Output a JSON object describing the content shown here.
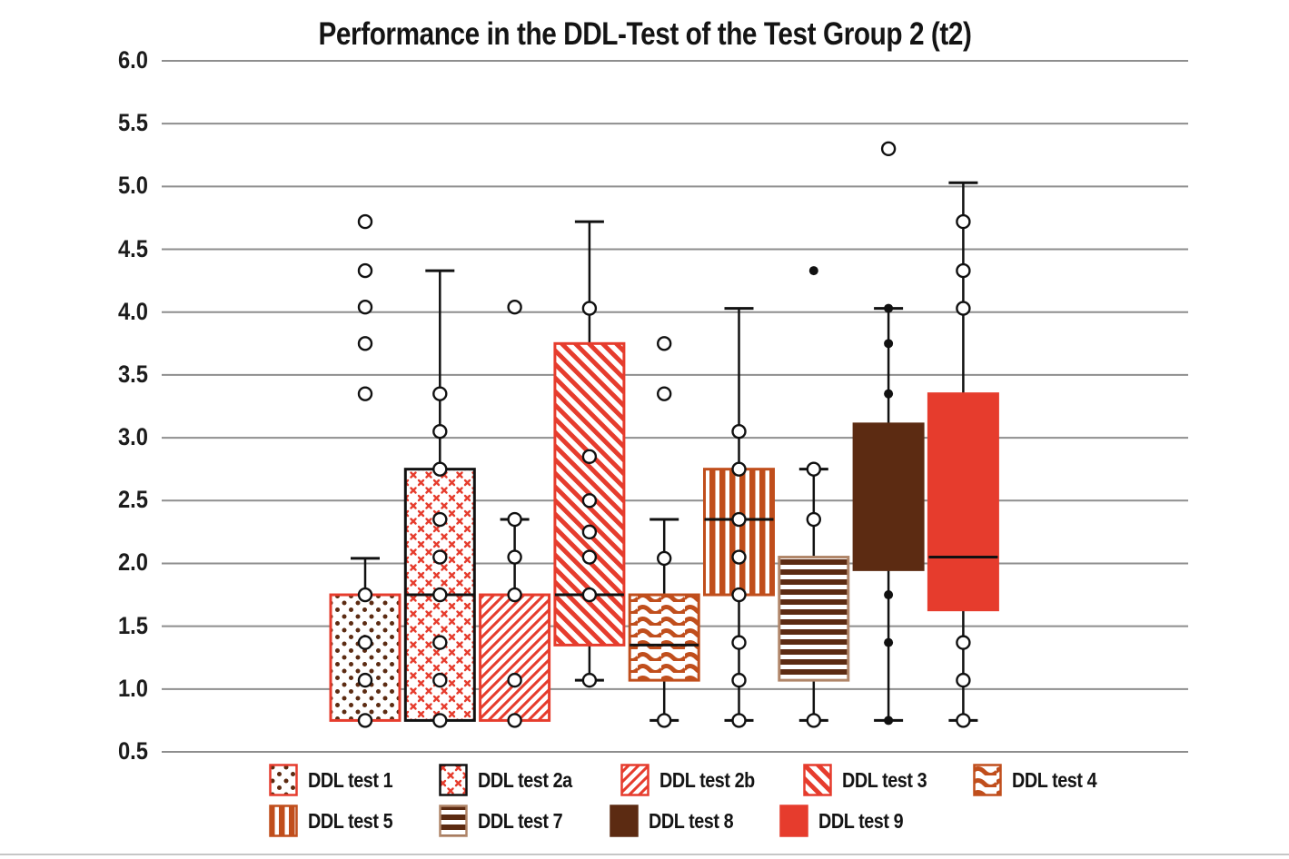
{
  "title": "Performance in the DDL-Test of the Test Group 2 (t2)",
  "colors": {
    "red": "#e63c2d",
    "orange": "#c04e1c",
    "brown": "#5c2b12",
    "black": "#111111",
    "white": "#ffffff",
    "grid": "#8e8e8e",
    "text": "#1c1c1c",
    "box7_border": "#b08568",
    "baseline": "#c6c6c6"
  },
  "chart_data": {
    "type": "boxplot",
    "title": "Performance in the DDL-Test of the Test Group 2 (t2)",
    "xlabel": "",
    "ylabel": "",
    "ylim": [
      0.5,
      6.0
    ],
    "yticks": [
      6.0,
      5.5,
      5.0,
      4.5,
      4.0,
      3.5,
      3.0,
      2.5,
      2.0,
      1.5,
      1.0,
      0.5
    ],
    "ytick_labels": [
      "6.0",
      "5.5",
      "5.0",
      "4.5",
      "4.0",
      "3.5",
      "3.0",
      "2.5",
      "2.0",
      "1.5",
      "1.0",
      "0.5"
    ],
    "grid": "horizontal",
    "legend_position": "bottom",
    "legend_rows": [
      5,
      4
    ],
    "groups": [
      {
        "name": "DDL test 1",
        "pattern": "dots",
        "border": "red",
        "box": {
          "q1": 0.75,
          "median": null,
          "q3": 1.75,
          "whisker_low": null,
          "whisker_high": 2.04
        },
        "open_points": [
          4.72,
          4.33,
          4.04,
          3.75,
          3.35,
          1.75,
          1.37,
          1.07,
          0.75
        ],
        "filled_points": []
      },
      {
        "name": "DDL test 2a",
        "pattern": "cross",
        "border": "black",
        "box": {
          "q1": 0.75,
          "median": 1.75,
          "q3": 2.75,
          "whisker_low": null,
          "whisker_high": 4.33
        },
        "open_points": [
          3.35,
          3.05,
          2.75,
          2.35,
          2.05,
          1.75,
          1.37,
          1.07,
          0.75
        ],
        "filled_points": []
      },
      {
        "name": "DDL test 2b",
        "pattern": "diag_thin",
        "border": "red",
        "box": {
          "q1": 0.75,
          "median": null,
          "q3": 1.75,
          "whisker_low": null,
          "whisker_high": 2.35
        },
        "open_points": [
          4.04,
          2.35,
          2.05,
          1.75,
          1.07,
          0.75
        ],
        "filled_points": []
      },
      {
        "name": "DDL test 3",
        "pattern": "diag_heavy",
        "border": "red",
        "box": {
          "q1": 1.35,
          "median": 1.75,
          "q3": 3.75,
          "whisker_low": 1.07,
          "whisker_high": 4.72
        },
        "open_points": [
          4.03,
          2.85,
          2.5,
          2.25,
          2.05,
          1.75,
          1.07
        ],
        "filled_points": []
      },
      {
        "name": "DDL test 4",
        "pattern": "wave",
        "border": "orange",
        "box": {
          "q1": 1.07,
          "median": 1.35,
          "q3": 1.75,
          "whisker_low": 0.75,
          "whisker_high": 2.35
        },
        "open_points": [
          3.75,
          3.35,
          2.04,
          0.75
        ],
        "filled_points": []
      },
      {
        "name": "DDL test 5",
        "pattern": "vstripe",
        "border": "orange",
        "box": {
          "q1": 1.75,
          "median": 2.35,
          "q3": 2.75,
          "whisker_low": 0.75,
          "whisker_high": 4.03
        },
        "open_points": [
          3.05,
          2.75,
          2.35,
          2.05,
          1.75,
          1.37,
          1.07,
          0.75
        ],
        "filled_points": []
      },
      {
        "name": "DDL test 7",
        "pattern": "hstripe",
        "border": "box7_border",
        "box": {
          "q1": 1.07,
          "median": null,
          "q3": 2.05,
          "whisker_low": 0.75,
          "whisker_high": 2.75
        },
        "open_points": [
          2.75,
          2.35,
          0.75
        ],
        "filled_points": [
          4.33
        ]
      },
      {
        "name": "DDL test 8",
        "pattern": "solid_brown",
        "border": "brown",
        "box": {
          "q1": 1.95,
          "median": null,
          "q3": 3.11,
          "whisker_low": 0.75,
          "whisker_high": 4.03
        },
        "open_points": [
          5.3
        ],
        "filled_points": [
          4.03,
          3.75,
          3.35,
          1.75,
          1.37,
          0.75
        ]
      },
      {
        "name": "DDL test 9",
        "pattern": "solid_red",
        "border": "red",
        "box": {
          "q1": 1.63,
          "median": 2.05,
          "q3": 3.35,
          "whisker_low": 0.75,
          "whisker_high": 5.03
        },
        "open_points": [
          4.72,
          4.33,
          4.03,
          1.37,
          1.07,
          0.75
        ],
        "filled_points": []
      }
    ]
  }
}
